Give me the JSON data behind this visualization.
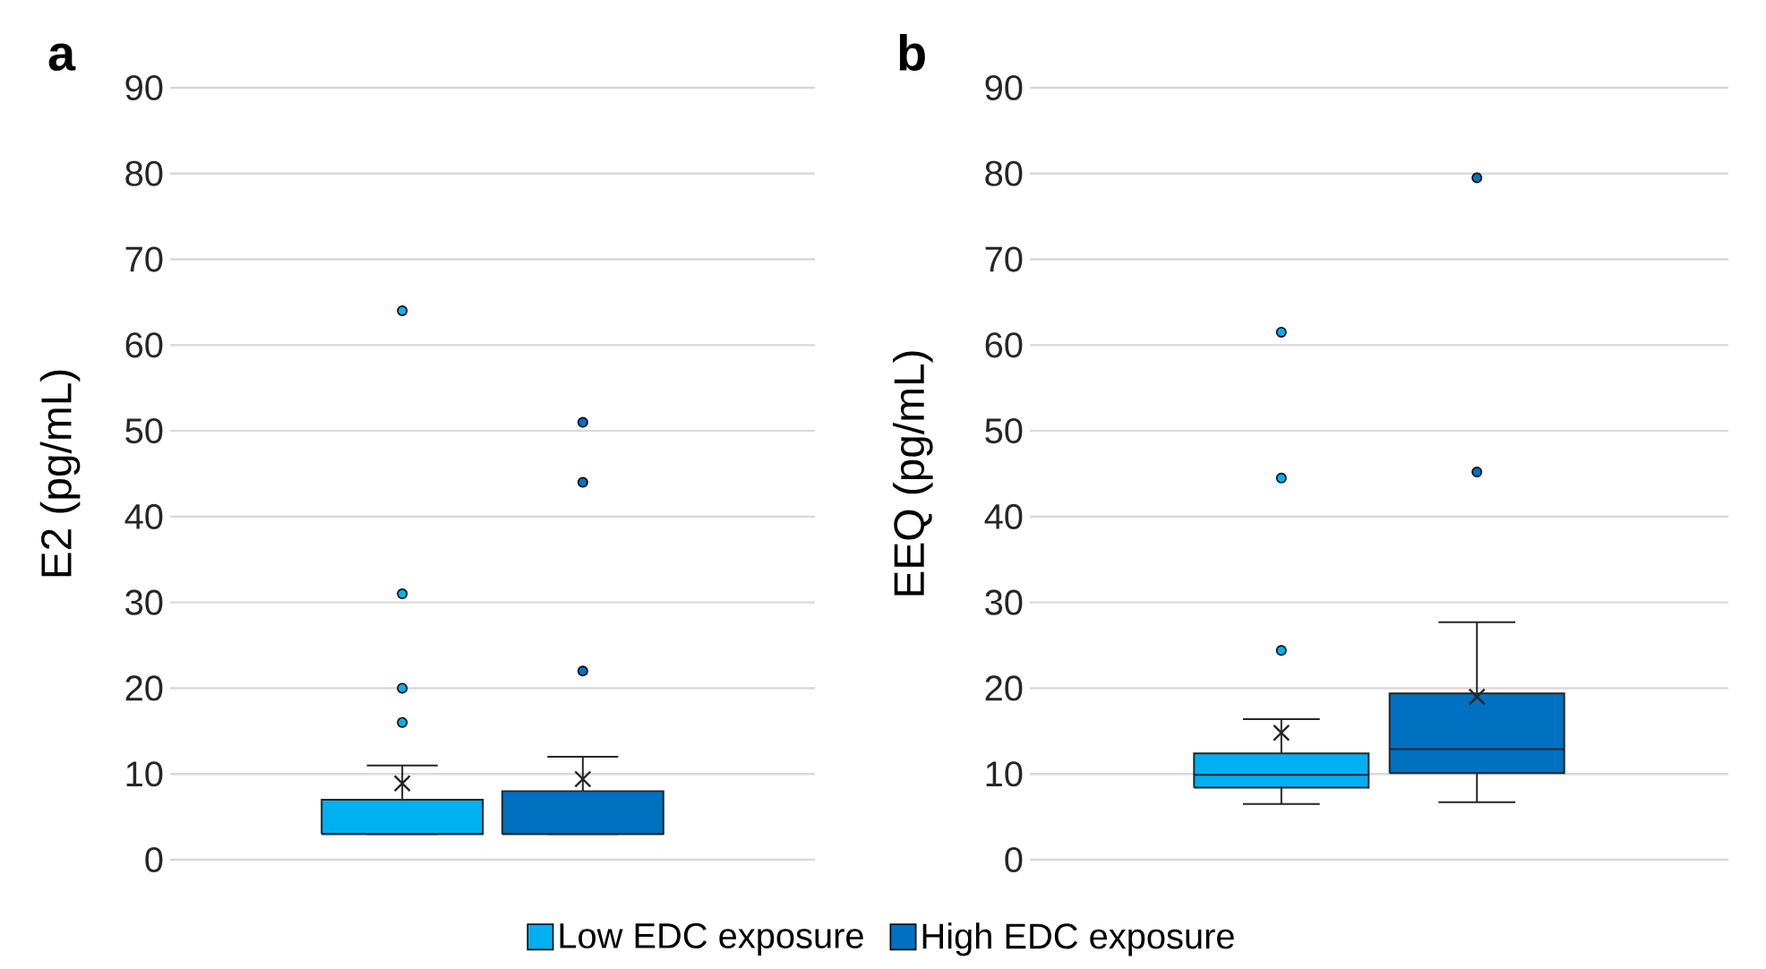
{
  "chart_data": [
    {
      "type": "box",
      "title": "a",
      "ylabel": "E2 (pg/mL)",
      "categories": [
        null
      ],
      "ylim": [
        0,
        90
      ],
      "yticks": [
        0,
        10,
        20,
        30,
        40,
        50,
        60,
        70,
        80,
        90
      ],
      "grid": "y",
      "legend": "bottom",
      "marker": "circle",
      "series": [
        {
          "name": "Low EDC exposure",
          "color": "#00b0f0",
          "boxes": [
            {
              "low": 3,
              "q1": 3,
              "median": 3,
              "q3": 7,
              "high": 11,
              "mean": 8.9,
              "outliers": [
                64,
                31,
                20,
                16
              ]
            }
          ]
        },
        {
          "name": "High EDC exposure",
          "color": "#0070c0",
          "boxes": [
            {
              "low": 3,
              "q1": 3,
              "median": 3,
              "q3": 8,
              "high": 12,
              "mean": 9.4,
              "outliers": [
                51,
                44,
                22
              ]
            }
          ]
        }
      ]
    },
    {
      "type": "box",
      "title": "b",
      "ylabel": "EEQ (pg/mL)",
      "categories": [
        null
      ],
      "ylim": [
        0,
        90
      ],
      "yticks": [
        0,
        10,
        20,
        30,
        40,
        50,
        60,
        70,
        80,
        90
      ],
      "grid": "y",
      "marker": "circle",
      "series": [
        {
          "color": "#00b0f0",
          "boxes": [
            {
              "low": 6.5,
              "q1": 8.4,
              "median": 9.9,
              "q3": 12.4,
              "high": 16.4,
              "mean": 14.8,
              "outliers": [
                61.5,
                44.5,
                24.4
              ]
            }
          ]
        },
        {
          "color": "#0070c0",
          "boxes": [
            {
              "low": 6.7,
              "q1": 10.1,
              "median": 12.9,
              "q3": 19.4,
              "high": 27.7,
              "mean": 19.0,
              "outliers": [
                79.5,
                45.2
              ]
            }
          ]
        }
      ]
    }
  ]
}
